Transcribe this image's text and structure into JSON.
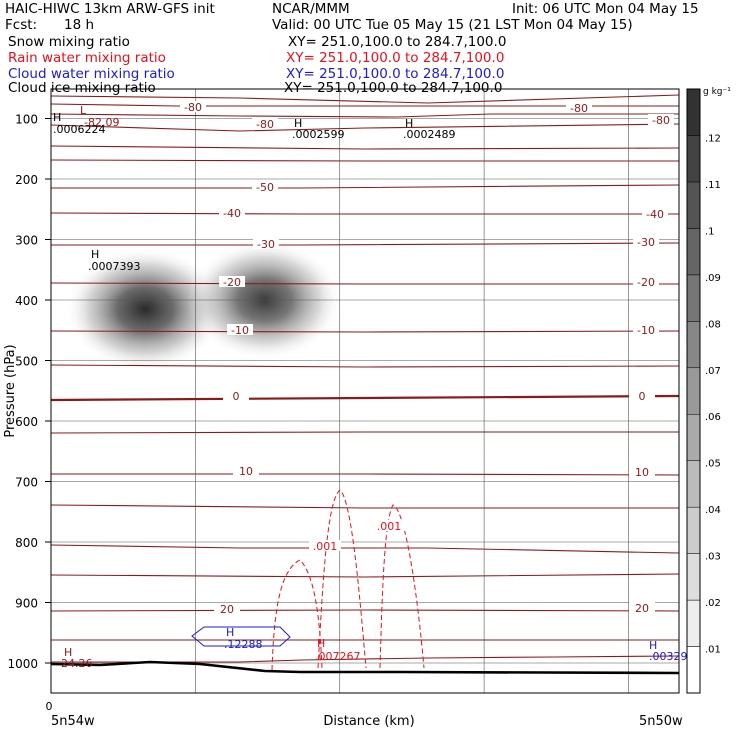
{
  "header": {
    "title": "HAIC-HIWC 13km ARW-GFS init",
    "center": "NCAR/MMM",
    "init": "Init: 06 UTC Mon 04 May 15",
    "fcst_label": "Fcst:",
    "fcst_value": "18 h",
    "valid": "Valid: 00 UTC Tue 05 May 15 (21 LST Mon 04 May 15)"
  },
  "fields": [
    {
      "name": "Snow mixing ratio",
      "xy": "XY= 251.0,100.0 to 284.7,100.0",
      "color": "#000000"
    },
    {
      "name": "Rain water mixing ratio",
      "xy": "XY= 251.0,100.0 to 284.7,100.0",
      "color": "#e8111a"
    },
    {
      "name": "Cloud water mixing ratio",
      "xy": "XY= 251.0,100.0 to 284.7,100.0",
      "color": "#1b1bd6"
    },
    {
      "name": "Cloud ice mixing ratio",
      "xy": "XY= 251.0,100.0 to 284.7,100.0",
      "color": "#000000"
    }
  ],
  "chart_data": {
    "type": "heatmap",
    "title": "Snow mixing ratio",
    "xlabel": "Distance (km)",
    "ylabel": "Pressure (hPa)",
    "x_left_label": "5n54w",
    "x_right_label": "5n50w",
    "x_origin_label": "0",
    "ylim": [
      1050,
      50
    ],
    "y_ticks": [
      100,
      200,
      300,
      400,
      500,
      600,
      700,
      800,
      900,
      1000
    ],
    "colorbar": {
      "units": "g kg⁻¹",
      "levels": [
        0.01,
        0.02,
        0.03,
        0.04,
        0.05,
        0.06,
        0.07,
        0.08,
        0.09,
        0.1,
        0.11,
        0.12
      ],
      "labels": [
        ".01",
        ".02",
        ".03",
        ".04",
        ".05",
        ".06",
        ".07",
        ".08",
        ".09",
        ".1",
        ".11",
        ".12"
      ]
    },
    "snow_blobs": [
      {
        "x": 0.15,
        "p": 415,
        "peak": 0.12
      },
      {
        "x": 0.34,
        "p": 400,
        "peak": 0.095
      }
    ],
    "temperature_isotherms": [
      {
        "value": -80,
        "labels": [
          "-80",
          "-80",
          "-80",
          "-80"
        ]
      },
      {
        "value": -50,
        "labels": [
          "-50"
        ]
      },
      {
        "value": -40,
        "labels": [
          "-40",
          "-40"
        ]
      },
      {
        "value": -30,
        "labels": [
          "-30",
          "-30"
        ]
      },
      {
        "value": -20,
        "labels": [
          "-20",
          "-20"
        ]
      },
      {
        "value": -10,
        "labels": [
          "-10",
          "-10"
        ]
      },
      {
        "value": 0,
        "labels": [
          "0",
          "0"
        ]
      },
      {
        "value": 10,
        "labels": [
          "10",
          "10"
        ]
      },
      {
        "value": 20,
        "labels": [
          "20",
          "20"
        ]
      }
    ],
    "rain_contour_labels": [
      ".001",
      ".001"
    ],
    "annotations": [
      {
        "mark": "H",
        "value": ".0006224",
        "color": "#000000"
      },
      {
        "mark": "L",
        "value": "-82.09",
        "color": "#8b1a1a"
      },
      {
        "mark": "H",
        "value": ".0002599",
        "color": "#000000"
      },
      {
        "mark": "H",
        "value": ".0002489",
        "color": "#000000"
      },
      {
        "mark": "H",
        "value": ".0007393",
        "color": "#000000"
      },
      {
        "mark": "H",
        "value": ".12288",
        "color": "#1b1bd6"
      },
      {
        "mark": "H",
        "value": ".007267",
        "color": "#e8111a"
      },
      {
        "mark": "H",
        "value": "24.26",
        "color": "#8b1a1a"
      },
      {
        "mark": "H",
        "value": ".00329",
        "color": "#1b1bd6"
      }
    ]
  }
}
